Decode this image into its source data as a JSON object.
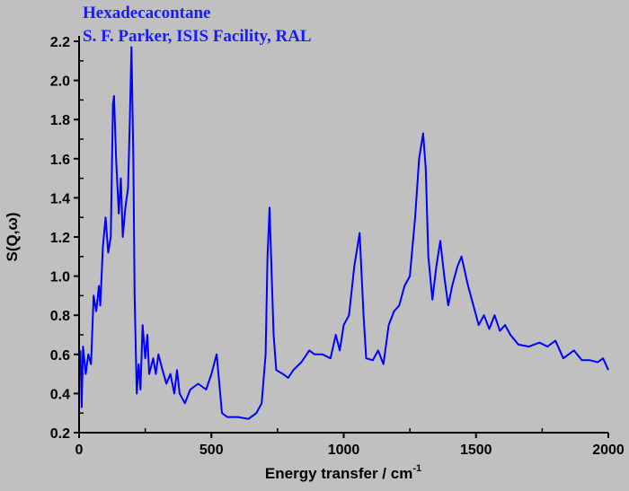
{
  "chart_data": {
    "type": "line",
    "title": "Hexadecacontane",
    "subtitle": "S. F. Parker, ISIS Facility, RAL",
    "xlabel": "Energy transfer / cm",
    "xlabel_superscript": "-1",
    "ylabel": "S(Q,ω)",
    "xlim": [
      0,
      2000
    ],
    "ylim": [
      0.2,
      2.2
    ],
    "xticks": [
      0,
      500,
      1000,
      1500,
      2000
    ],
    "xtick_labels": [
      "0",
      "500",
      "1000",
      "1500",
      "2000"
    ],
    "yticks": [
      0.2,
      0.4,
      0.6,
      0.8,
      1.0,
      1.2,
      1.4,
      1.6,
      1.8,
      2.0,
      2.2
    ],
    "ytick_labels": [
      "0.2",
      "0.4",
      "0.6",
      "0.8",
      "1.0",
      "1.2",
      "1.4",
      "1.6",
      "1.8",
      "2.0",
      "2.2"
    ],
    "grid": false,
    "line_color": "#0000ff",
    "series": [
      {
        "name": "Hexadecacontane",
        "x": [
          5,
          10,
          15,
          25,
          35,
          45,
          55,
          65,
          75,
          80,
          90,
          100,
          110,
          120,
          128,
          132,
          140,
          150,
          158,
          165,
          175,
          185,
          192,
          198,
          205,
          210,
          218,
          225,
          232,
          240,
          250,
          258,
          265,
          280,
          290,
          300,
          315,
          330,
          345,
          360,
          370,
          380,
          400,
          420,
          450,
          480,
          500,
          520,
          530,
          540,
          560,
          600,
          640,
          670,
          690,
          705,
          712,
          720,
          728,
          735,
          745,
          770,
          790,
          810,
          840,
          870,
          890,
          920,
          950,
          970,
          985,
          1000,
          1020,
          1040,
          1060,
          1075,
          1085,
          1110,
          1130,
          1150,
          1170,
          1190,
          1210,
          1230,
          1250,
          1270,
          1285,
          1300,
          1310,
          1320,
          1335,
          1350,
          1365,
          1380,
          1395,
          1410,
          1430,
          1445,
          1470,
          1490,
          1510,
          1530,
          1550,
          1570,
          1590,
          1610,
          1630,
          1660,
          1700,
          1740,
          1770,
          1800,
          1830,
          1850,
          1870,
          1900,
          1930,
          1960,
          1980,
          2000
        ],
        "y": [
          0.62,
          0.33,
          0.64,
          0.5,
          0.6,
          0.55,
          0.9,
          0.82,
          0.95,
          0.85,
          1.15,
          1.3,
          1.12,
          1.2,
          1.88,
          1.92,
          1.6,
          1.32,
          1.5,
          1.2,
          1.35,
          1.45,
          1.8,
          2.17,
          1.6,
          0.9,
          0.4,
          0.55,
          0.42,
          0.75,
          0.58,
          0.7,
          0.5,
          0.58,
          0.5,
          0.6,
          0.52,
          0.45,
          0.5,
          0.4,
          0.52,
          0.4,
          0.35,
          0.42,
          0.45,
          0.42,
          0.5,
          0.6,
          0.45,
          0.3,
          0.28,
          0.28,
          0.27,
          0.3,
          0.35,
          0.6,
          1.1,
          1.35,
          1.0,
          0.7,
          0.52,
          0.5,
          0.48,
          0.52,
          0.56,
          0.62,
          0.6,
          0.6,
          0.58,
          0.7,
          0.62,
          0.75,
          0.8,
          1.05,
          1.22,
          0.8,
          0.58,
          0.57,
          0.62,
          0.55,
          0.75,
          0.82,
          0.85,
          0.95,
          1.0,
          1.3,
          1.6,
          1.73,
          1.55,
          1.1,
          0.88,
          1.05,
          1.18,
          1.0,
          0.85,
          0.95,
          1.05,
          1.1,
          0.95,
          0.85,
          0.75,
          0.8,
          0.73,
          0.8,
          0.72,
          0.75,
          0.7,
          0.65,
          0.64,
          0.66,
          0.64,
          0.67,
          0.58,
          0.6,
          0.62,
          0.57,
          0.57,
          0.56,
          0.58,
          0.52
        ]
      }
    ]
  }
}
